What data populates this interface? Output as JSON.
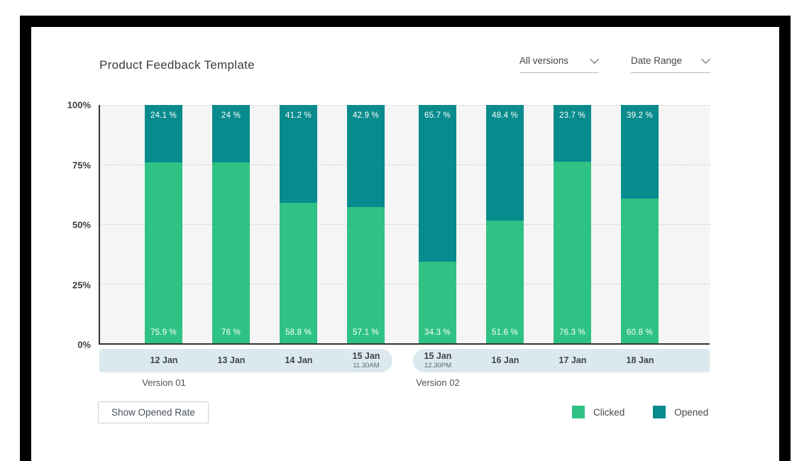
{
  "header": {
    "title": "Product Feedback Template",
    "version_filter": "All versions",
    "date_filter": "Date Range"
  },
  "chart_data": {
    "type": "bar",
    "stacked": true,
    "title": "Product Feedback Template",
    "unit": "%",
    "ylim": [
      0,
      100
    ],
    "y_ticks": [
      "100%",
      "75%",
      "50%",
      "25%",
      "0%"
    ],
    "grid": "horizontal dashed",
    "legend_position": "bottom-right",
    "plot_background": "#f5f5f5",
    "axis_band_color": "#dbe9ef",
    "categories": [
      {
        "label": "12 Jan",
        "sublabel": "",
        "group": 0
      },
      {
        "label": "13 Jan",
        "sublabel": "",
        "group": 0
      },
      {
        "label": "14 Jan",
        "sublabel": "",
        "group": 0
      },
      {
        "label": "15 Jan",
        "sublabel": "11.30AM",
        "group": 0
      },
      {
        "label": "15 Jan",
        "sublabel": "12.30PM",
        "group": 1
      },
      {
        "label": "16 Jan",
        "sublabel": "",
        "group": 1
      },
      {
        "label": "17 Jan",
        "sublabel": "",
        "group": 1
      },
      {
        "label": "18 Jan",
        "sublabel": "",
        "group": 1
      }
    ],
    "groups": [
      {
        "label": "Version 01"
      },
      {
        "label": "Version 02"
      }
    ],
    "series": [
      {
        "name": "Clicked",
        "color": "#2ec284",
        "values": [
          75.9,
          76,
          58.8,
          57.1,
          34.3,
          51.6,
          76.3,
          60.8
        ]
      },
      {
        "name": "Opened",
        "color": "#078b8c",
        "values": [
          24.1,
          24,
          41.2,
          42.9,
          65.7,
          48.4,
          23.7,
          39.2
        ]
      }
    ]
  },
  "footer": {
    "button_label": "Show Opened Rate",
    "legend": [
      {
        "label": "Clicked",
        "color": "#2ec284"
      },
      {
        "label": "Opened",
        "color": "#078b8c"
      }
    ]
  }
}
